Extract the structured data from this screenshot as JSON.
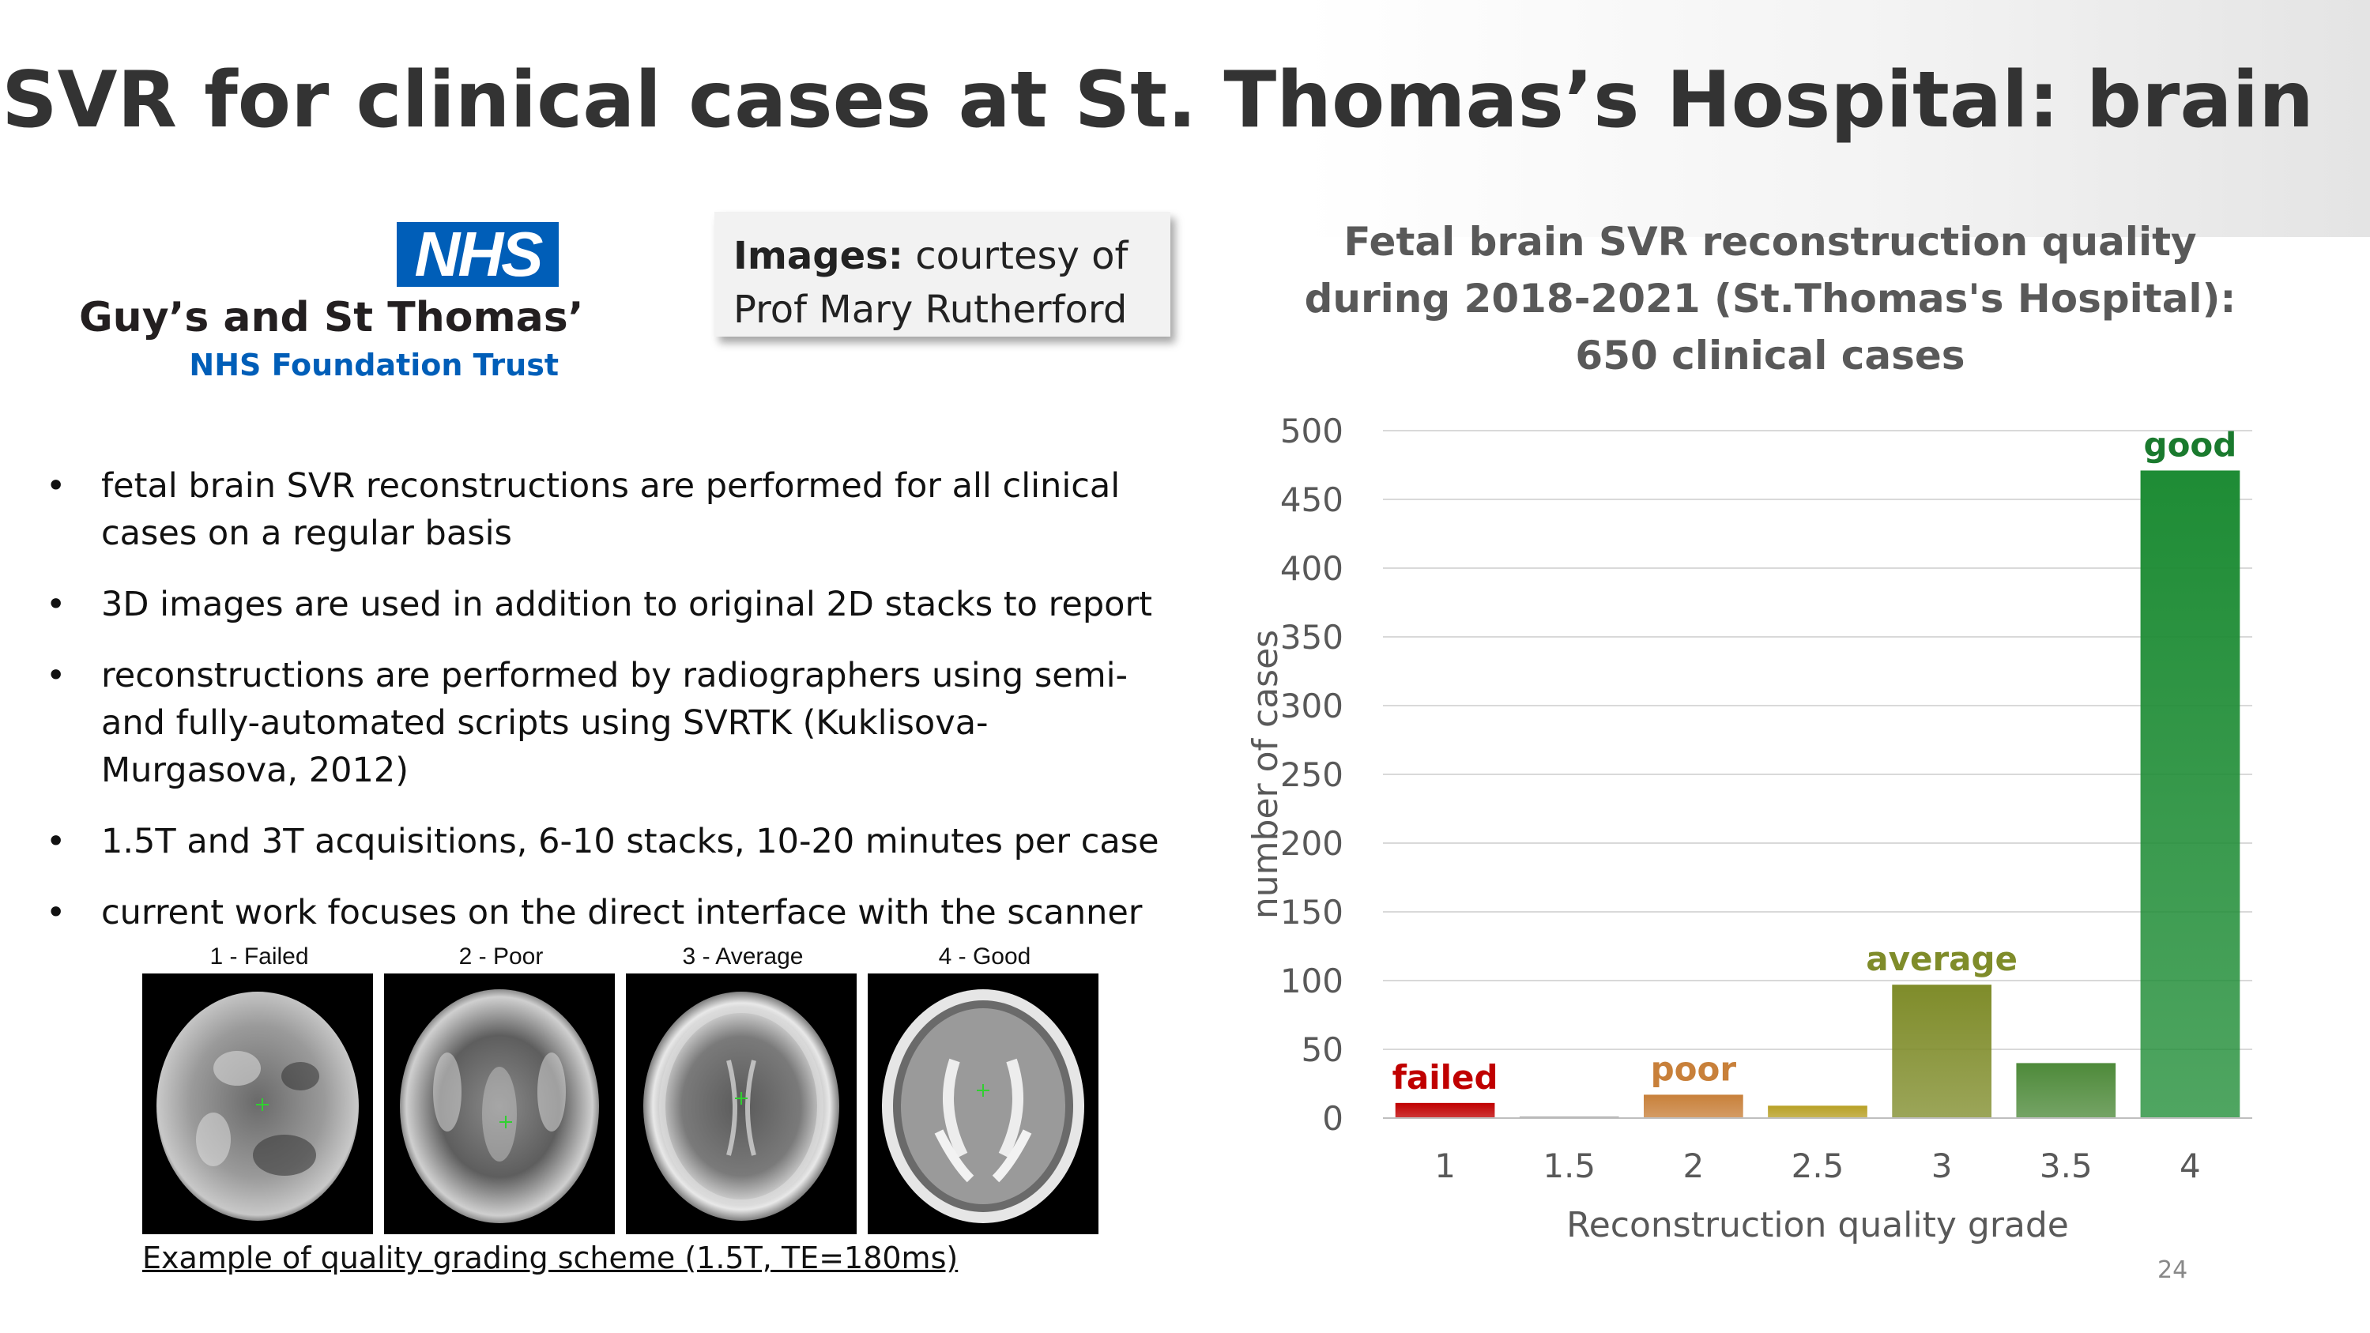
{
  "slide": {
    "title": "SVR for clinical cases at St. Thomas’s Hospital: brain",
    "page_number": "24"
  },
  "logo": {
    "badge": "NHS",
    "name": "Guy’s and St Thomas’",
    "subtitle": "NHS Foundation Trust",
    "badge_color": "#005eb8"
  },
  "courtesy": {
    "bold": "Images:",
    "text": "courtesy of",
    "line2": "Prof Mary Rutherford"
  },
  "bullets": [
    "fetal brain SVR reconstructions are performed for all clinical cases on a regular basis",
    "3D images are used in addition to original 2D stacks to report",
    "reconstructions are performed by radiographers using semi-and fully-automated scripts using SVRTK (Kuklisova-Murgasova, 2012)",
    "1.5T and 3T acquisitions, 6-10 stacks, 10-20 minutes per case",
    "current work focuses on the direct interface with the scanner"
  ],
  "grading_examples": {
    "labels": [
      "1 - Failed",
      "2 - Poor",
      "3 - Average",
      "4 - Good"
    ],
    "caption": "Example of quality grading scheme (1.5T, TE=180ms)"
  },
  "chart_data": {
    "type": "bar",
    "title_lines": [
      "Fetal brain SVR reconstruction quality",
      "during 2018-2021 (St.Thomas's Hospital):",
      "650 clinical cases"
    ],
    "xlabel": "Reconstruction quality grade",
    "ylabel": "number of cases",
    "categories": [
      "1",
      "1.5",
      "2",
      "2.5",
      "3",
      "3.5",
      "4"
    ],
    "values": [
      11,
      1,
      17,
      9,
      97,
      40,
      471
    ],
    "ylim": [
      0,
      500
    ],
    "yticks": [
      0,
      50,
      100,
      150,
      200,
      250,
      300,
      350,
      400,
      450,
      500
    ],
    "grid": true,
    "bar_colors": [
      "#c00000",
      "#a5a5a5",
      "#c8803a",
      "#b8a025",
      "#7f8c2a",
      "#4e8a3a",
      "#1e8c35"
    ],
    "annotations": [
      {
        "category": "1",
        "text": "failed",
        "color": "#c00000"
      },
      {
        "category": "2",
        "text": "poor",
        "color": "#c8803a"
      },
      {
        "category": "3",
        "text": "average",
        "color": "#7f8c2a"
      },
      {
        "category": "4",
        "text": "good",
        "color": "#1a7a2e"
      }
    ]
  }
}
